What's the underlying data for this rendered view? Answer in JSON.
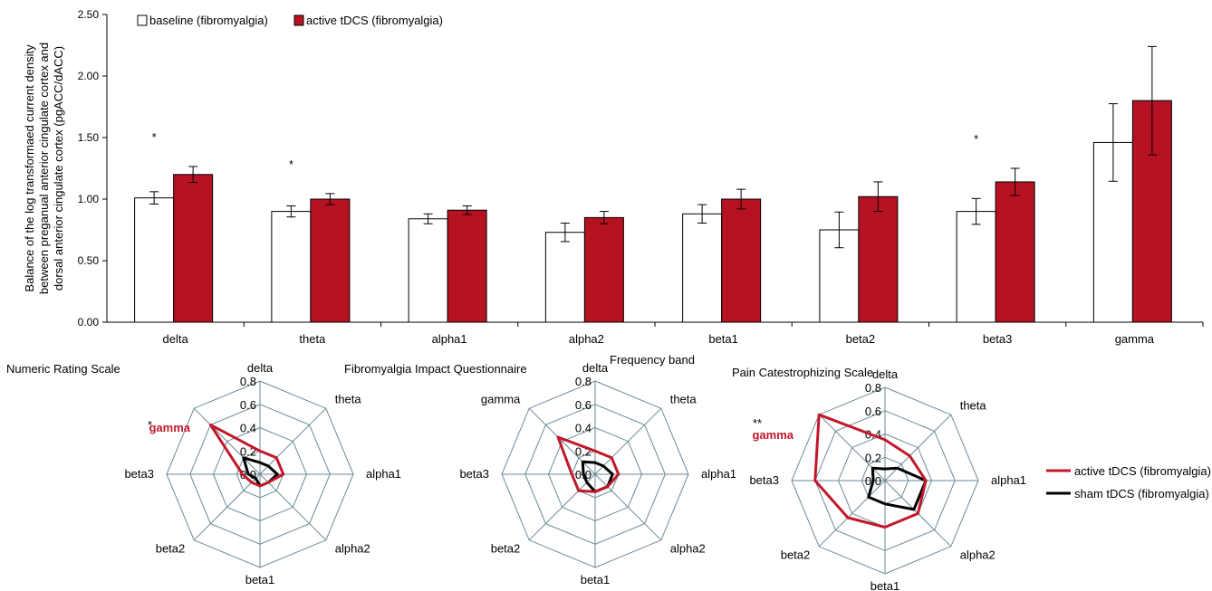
{
  "colors": {
    "active": "#b51222",
    "baseline": "#ffffff",
    "sham": "#000000",
    "axis": "#000000",
    "grid": "#6b8a99",
    "red_text": "#c2182b"
  },
  "chart_data": [
    {
      "type": "bar",
      "title": "",
      "xlabel": "Frequency band",
      "ylabel_lines": [
        "Balance of the log transformaed current density",
        "between preganual anterior cingulate cortex and",
        "dorsal anterior cingulate cortex (pgACC/dACC)"
      ],
      "ylim": [
        0,
        2.5
      ],
      "yticks": [
        "0.00",
        "0.50",
        "1.00",
        "1.50",
        "2.00",
        "2.50"
      ],
      "categories": [
        "delta",
        "theta",
        "alpha1",
        "alpha2",
        "beta1",
        "beta2",
        "beta3",
        "gamma"
      ],
      "series": [
        {
          "name": "baseline (fibromyalgia)",
          "values": [
            1.01,
            0.9,
            0.84,
            0.73,
            0.88,
            0.75,
            0.9,
            1.46
          ],
          "errors": [
            0.05,
            0.045,
            0.04,
            0.075,
            0.075,
            0.145,
            0.105,
            0.315
          ]
        },
        {
          "name": "active tDCS (fibromyalgia)",
          "values": [
            1.2,
            1.0,
            0.91,
            0.85,
            1.0,
            1.02,
            1.14,
            1.8
          ],
          "errors": [
            0.065,
            0.045,
            0.035,
            0.05,
            0.08,
            0.12,
            0.11,
            0.44
          ]
        }
      ],
      "significance": [
        "*",
        "*",
        "",
        "",
        "",
        "",
        "*",
        ""
      ],
      "legend_position": "top-left"
    },
    {
      "type": "radar",
      "title": "Numeric Rating Scale",
      "axes": [
        "delta",
        "theta",
        "alpha1",
        "alpha2",
        "beta1",
        "beta2",
        "beta3",
        "gamma"
      ],
      "rings": [
        "0.0",
        "0.2",
        "0.4",
        "0.6",
        "0.8"
      ],
      "rmax": 0.8,
      "highlight_axis": "gamma",
      "highlight_mark": "*",
      "series": [
        {
          "name": "active tDCS (fibromyalgia)",
          "values": [
            0.2,
            0.2,
            0.2,
            0.1,
            0.1,
            0.1,
            0.15,
            0.6
          ]
        },
        {
          "name": "sham tDCS (fibromyalgia)",
          "values": [
            0.1,
            0.1,
            0.15,
            0.1,
            0.1,
            0.05,
            0.1,
            0.2
          ]
        }
      ]
    },
    {
      "type": "radar",
      "title": "Fibromyalgia Impact Questionnaire",
      "axes": [
        "delta",
        "theta",
        "alpha1",
        "alpha2",
        "beta1",
        "beta2",
        "beta3",
        "gamma"
      ],
      "rings": [
        "0.0",
        "0.2",
        "0.4",
        "0.6",
        "0.8"
      ],
      "rmax": 0.8,
      "highlight_axis": "",
      "highlight_mark": "",
      "series": [
        {
          "name": "active tDCS (fibromyalgia)",
          "values": [
            0.2,
            0.2,
            0.2,
            0.15,
            0.15,
            0.2,
            0.2,
            0.45
          ]
        },
        {
          "name": "sham tDCS (fibromyalgia)",
          "values": [
            0.1,
            0.1,
            0.15,
            0.15,
            0.15,
            0.1,
            0.1,
            0.15
          ]
        }
      ]
    },
    {
      "type": "radar",
      "title": "Pain Catestrophizing Scale",
      "axes": [
        "delta",
        "theta",
        "alpha1",
        "alpha2",
        "beta1",
        "beta2",
        "beta3",
        "gamma"
      ],
      "rings": [
        "0.0",
        "0.2",
        "0.4",
        "0.6",
        "0.8"
      ],
      "rmax": 0.8,
      "highlight_axis": "gamma",
      "highlight_mark": "**",
      "series": [
        {
          "name": "active tDCS (fibromyalgia)",
          "values": [
            0.35,
            0.3,
            0.35,
            0.4,
            0.4,
            0.45,
            0.6,
            0.8
          ]
        },
        {
          "name": "sham tDCS (fibromyalgia)",
          "values": [
            0.1,
            0.15,
            0.35,
            0.35,
            0.2,
            0.2,
            0.1,
            0.15
          ]
        }
      ]
    }
  ],
  "radar_legend": [
    "active tDCS (fibromyalgia)",
    "sham tDCS (fibromyalgia)"
  ]
}
